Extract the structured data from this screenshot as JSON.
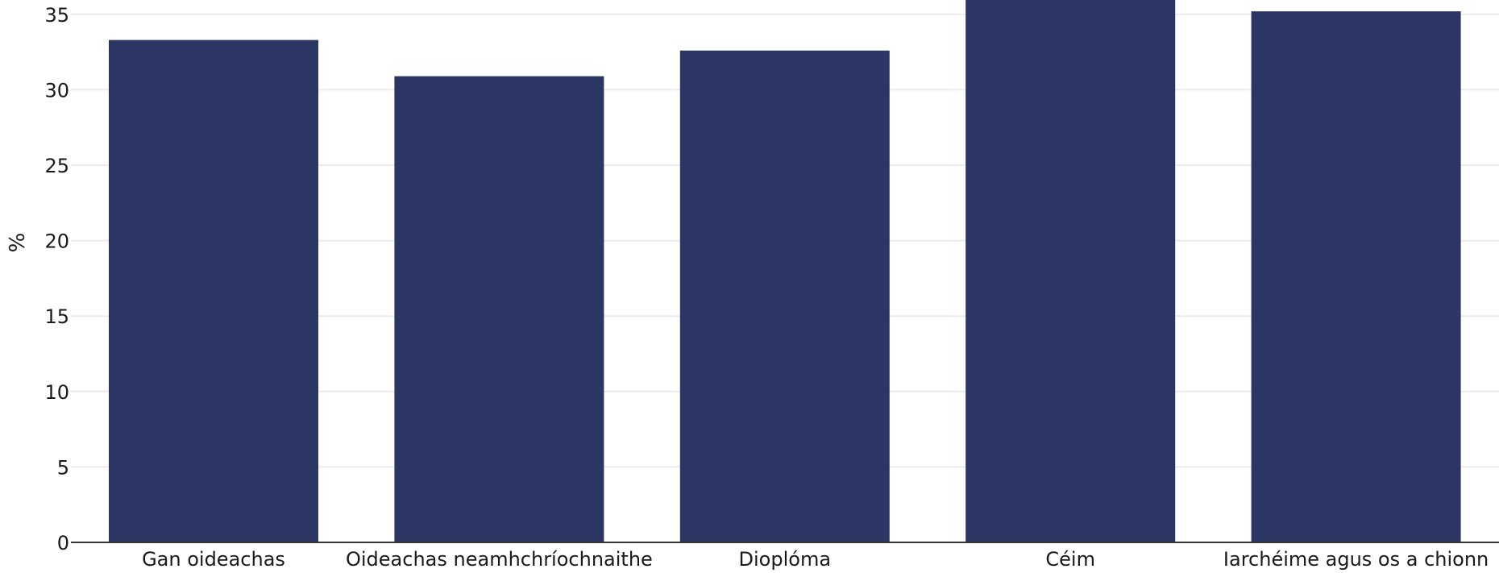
{
  "chart_data": {
    "type": "bar",
    "categories": [
      "Gan oideachas",
      "Oideachas neamhchríochnaithe",
      "Dioplóma",
      "Céim",
      "Iarchéime agus os a chionn"
    ],
    "values": [
      33.3,
      30.9,
      32.6,
      36.1,
      35.2
    ],
    "ylabel": "%",
    "ylim": [
      0,
      35
    ],
    "yticks": [
      0,
      5,
      10,
      15,
      20,
      25,
      30,
      35
    ],
    "grid": true,
    "bar_color": "#2b3664",
    "gridline_color": "#ebebeb",
    "baseline_color": "#333333"
  }
}
